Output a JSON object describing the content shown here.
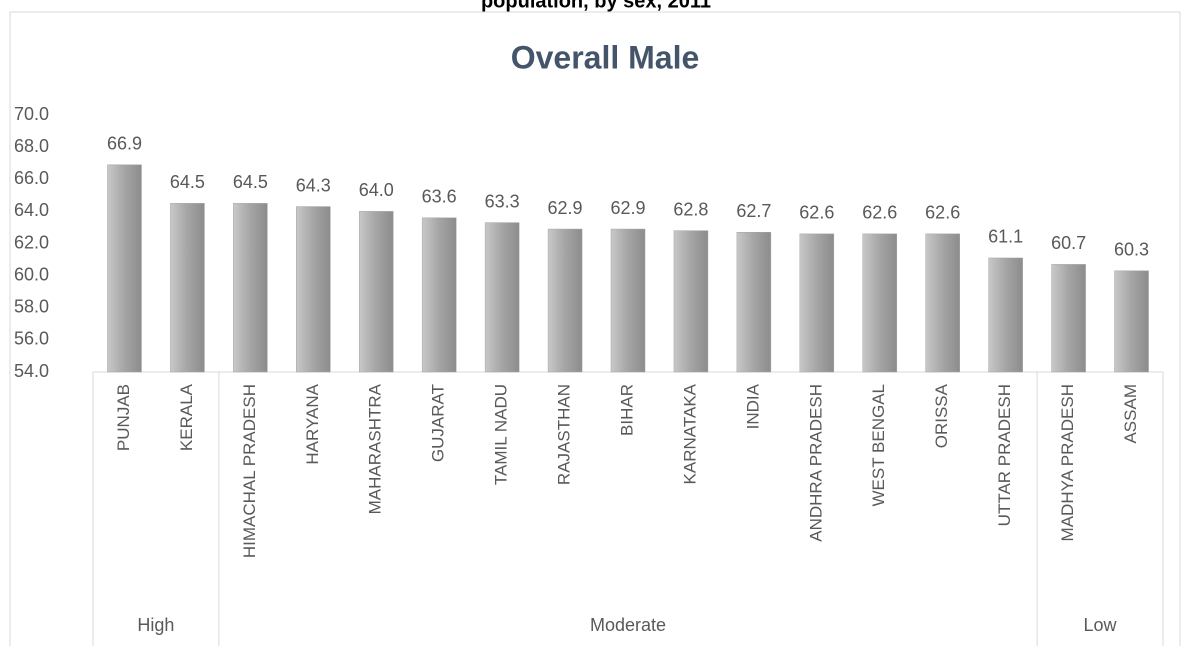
{
  "chart_data": {
    "type": "bar",
    "supertitle": "population, by sex, 2011",
    "title": "Overall Male",
    "color": "#a5a5a5",
    "ylim": [
      54,
      70
    ],
    "yticks": [
      {
        "value": 54,
        "label": "54.0"
      },
      {
        "value": 56,
        "label": "56.0"
      },
      {
        "value": 58,
        "label": "58.0"
      },
      {
        "value": 60,
        "label": "60.0"
      },
      {
        "value": 62,
        "label": "62.0"
      },
      {
        "value": 64,
        "label": "64.0"
      },
      {
        "value": 66,
        "label": "66.0"
      },
      {
        "value": 68,
        "label": "68.0"
      },
      {
        "value": 70,
        "label": "70.0"
      }
    ],
    "groups": [
      {
        "label": "High",
        "categories": [
          "PUNJAB",
          "KERALA"
        ],
        "values": [
          66.9,
          64.5
        ],
        "value_labels": [
          "66.9",
          "64.5"
        ]
      },
      {
        "label": "Moderate",
        "categories": [
          "HIMACHAL PRADESH",
          "HARYANA",
          "MAHARASHTRA",
          "GUJARAT",
          "TAMIL NADU",
          "RAJASTHAN",
          "BIHAR",
          "KARNATAKA",
          "INDIA",
          "ANDHRA PRADESH",
          "WEST BENGAL",
          "ORISSA",
          "UTTAR PRADESH"
        ],
        "values": [
          64.5,
          64.3,
          64.0,
          63.6,
          63.3,
          62.9,
          62.9,
          62.8,
          62.7,
          62.6,
          62.6,
          62.6,
          61.1
        ],
        "value_labels": [
          "64.5",
          "64.3",
          "64.0",
          "63.6",
          "63.3",
          "62.9",
          "62.9",
          "62.8",
          "62.7",
          "62.6",
          "62.6",
          "62.6",
          "61.1"
        ]
      },
      {
        "label": "Low",
        "categories": [
          "MADHYA PRADESH",
          "ASSAM"
        ],
        "values": [
          60.7,
          60.3
        ],
        "value_labels": [
          "60.7",
          "60.3"
        ]
      }
    ]
  }
}
